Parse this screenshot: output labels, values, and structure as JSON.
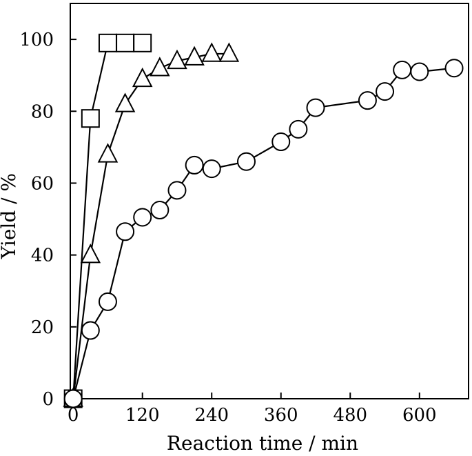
{
  "chart_data": {
    "type": "line",
    "title": "",
    "xlabel": "Reaction time / min",
    "ylabel": "Yield / %",
    "xlim": [
      -5,
      685
    ],
    "ylim": [
      0,
      110
    ],
    "xticks": [
      0,
      120,
      240,
      360,
      480,
      600
    ],
    "yticks": [
      0,
      20,
      40,
      60,
      80,
      100
    ],
    "grid": false,
    "legend": "none",
    "colors": {
      "line": "#000000",
      "marker_fill": "#ffffff",
      "background": "#ffffff"
    },
    "series": [
      {
        "marker": "square",
        "x": [
          0,
          30,
          60,
          90,
          120
        ],
        "y": [
          0,
          78,
          99,
          99,
          99
        ]
      },
      {
        "marker": "triangle",
        "x": [
          0,
          30,
          60,
          90,
          120,
          150,
          180,
          210,
          240,
          270
        ],
        "y": [
          0,
          40,
          68,
          82,
          89,
          92,
          94,
          95,
          96,
          96
        ]
      },
      {
        "marker": "circle",
        "x": [
          0,
          30,
          60,
          90,
          120,
          150,
          180,
          210,
          240,
          300,
          360,
          390,
          420,
          510,
          540,
          570,
          600,
          660
        ],
        "y": [
          0,
          19,
          27,
          46.5,
          50.5,
          52.5,
          58,
          65,
          64,
          66,
          71.5,
          75,
          81,
          83,
          85.5,
          91.5,
          91,
          92
        ]
      }
    ]
  }
}
